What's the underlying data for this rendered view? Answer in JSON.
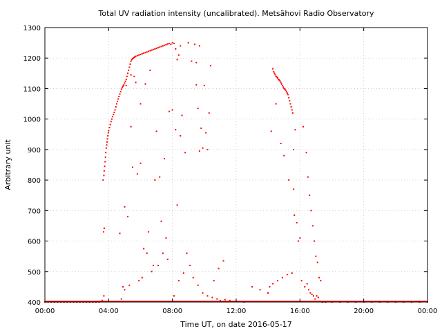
{
  "chart_data": {
    "type": "scatter",
    "title": "Total UV radiation intensity (uncalibrated). Metsähovi Radio Observatory",
    "xlabel": "Time UT, on date 2016-05-17",
    "ylabel": "Arbitrary unit",
    "xlim": [
      0,
      24
    ],
    "ylim": [
      400,
      1300
    ],
    "x_ticks": [
      0,
      4,
      8,
      12,
      16,
      20,
      24
    ],
    "x_tick_labels": [
      "00:00",
      "04:00",
      "08:00",
      "12:00",
      "16:00",
      "20:00",
      "00:00"
    ],
    "y_ticks": [
      400,
      500,
      600,
      700,
      800,
      900,
      1000,
      1100,
      1200,
      1300
    ],
    "y_tick_labels": [
      "400",
      "500",
      "600",
      "700",
      "800",
      "900",
      "1000",
      "1100",
      "1200",
      "1300"
    ],
    "grid": true,
    "marker_color": "#ff0000",
    "series": [
      {
        "x": [
          0.0,
          0.2,
          0.4,
          0.6,
          0.8,
          1.0,
          1.2,
          1.4,
          1.6,
          1.8,
          2.0,
          2.2,
          2.4,
          2.6,
          2.8,
          3.0,
          3.2,
          3.4,
          3.6,
          3.65,
          3.7,
          3.72,
          3.75,
          3.78,
          3.8,
          3.82,
          3.85,
          3.88,
          3.9,
          3.92,
          3.95,
          3.98,
          4.0,
          4.05,
          4.1,
          4.15,
          4.2,
          4.25,
          4.3,
          4.35,
          4.4,
          4.45,
          4.5,
          4.55,
          4.6,
          4.65,
          4.7,
          4.75,
          4.8,
          4.85,
          4.9,
          4.95,
          5.0,
          5.05,
          5.1,
          5.15,
          5.2,
          5.25,
          5.3,
          5.35,
          5.4,
          5.45,
          5.5,
          5.55,
          5.6,
          5.65,
          5.7,
          5.8,
          5.9,
          6.0,
          6.1,
          6.2,
          6.3,
          6.4,
          6.5,
          6.6,
          6.7,
          6.8,
          6.9,
          7.0,
          7.1,
          7.2,
          7.3,
          7.4,
          7.5,
          7.6,
          7.7,
          7.8,
          7.9,
          8.0,
          8.1,
          8.2,
          8.3,
          8.4,
          8.5,
          3.72,
          4.7,
          5.0,
          5.2,
          5.4,
          5.5,
          5.6,
          5.8,
          6.0,
          6.2,
          6.5,
          6.8,
          7.0,
          7.3,
          7.6,
          8.0,
          8.3,
          8.6,
          9.0,
          9.4,
          9.7,
          10.0,
          10.3,
          9.6,
          9.8,
          10.1,
          9.9,
          9.7,
          9.5,
          10.2,
          8.8,
          8.5,
          8.2,
          7.8,
          7.5,
          7.2,
          6.9,
          6.6,
          6.3,
          6.0,
          5.7,
          5.4,
          5.1,
          4.8,
          3.7,
          3.68,
          4.9,
          5.0,
          5.3,
          5.9,
          6.1,
          6.4,
          6.7,
          7.1,
          7.4,
          7.7,
          8.1,
          8.4,
          8.7,
          9.1,
          9.3,
          9.6,
          9.9,
          10.2,
          10.5,
          10.8,
          11.0,
          11.3,
          11.6,
          12.0,
          12.5,
          13.0,
          13.5,
          14.0,
          10.6,
          10.9,
          11.2,
          8.9,
          9.2,
          9.5,
          10.4,
          14.3,
          14.35,
          14.4,
          14.45,
          14.5,
          14.55,
          14.6,
          14.65,
          14.7,
          14.75,
          14.8,
          14.85,
          14.9,
          14.95,
          15.0,
          15.05,
          15.1,
          15.15,
          15.2,
          15.25,
          15.3,
          15.35,
          15.4,
          15.45,
          15.5,
          15.55,
          15.6,
          15.65,
          15.7,
          14.2,
          14.5,
          14.8,
          15.0,
          15.3,
          15.6,
          15.8,
          16.0,
          16.2,
          16.4,
          16.5,
          16.6,
          16.7,
          16.8,
          16.9,
          17.0,
          17.1,
          17.2,
          17.3,
          16.45,
          16.55,
          16.65,
          16.75,
          16.85,
          16.95,
          17.05,
          17.15,
          14.0,
          14.1,
          14.3,
          14.6,
          14.9,
          15.2,
          15.5,
          15.9,
          16.1,
          16.3,
          17.4,
          17.6,
          18.0,
          18.5,
          19.0,
          19.5,
          20.0,
          20.5,
          21.0,
          21.5,
          22.0,
          22.5,
          23.0,
          23.5,
          24.0
        ],
        "y": [
          400,
          400,
          400,
          400,
          400,
          400,
          400,
          400,
          400,
          400,
          400,
          400,
          400,
          400,
          400,
          400,
          400,
          400,
          405,
          800,
          815,
          830,
          845,
          860,
          875,
          890,
          905,
          915,
          925,
          935,
          945,
          955,
          962,
          972,
          982,
          992,
          1000,
          1008,
          1015,
          1022,
          1030,
          1040,
          1050,
          1058,
          1066,
          1074,
          1082,
          1090,
          1098,
          1104,
          1108,
          1112,
          1118,
          1124,
          1130,
          1140,
          1150,
          1160,
          1170,
          1180,
          1190,
          1195,
          1198,
          1200,
          1202,
          1204,
          1206,
          1208,
          1210,
          1212,
          1214,
          1216,
          1218,
          1220,
          1222,
          1224,
          1226,
          1228,
          1230,
          1232,
          1234,
          1236,
          1238,
          1240,
          1242,
          1244,
          1246,
          1248,
          1245,
          1250,
          1248,
          1230,
          1195,
          1210,
          1240,
          642,
          625,
          712,
          680,
          975,
          842,
          1140,
          820,
          855,
          575,
          630,
          520,
          960,
          665,
          610,
          1030,
          718,
          1012,
          1250,
          1245,
          1240,
          1110,
          1020,
          1035,
          970,
          955,
          905,
          895,
          1112,
          900,
          890,
          945,
          965,
          1025,
          870,
          810,
          800,
          1160,
          1115,
          1050,
          1120,
          1145,
          1110,
          410,
          420,
          630,
          450,
          440,
          455,
          470,
          480,
          560,
          500,
          520,
          560,
          540,
          420,
          470,
          495,
          520,
          480,
          455,
          430,
          420,
          415,
          410,
          405,
          408,
          405,
          402,
          400,
          450,
          440,
          430,
          470,
          510,
          535,
          560,
          1190,
          1185,
          1175,
          1165,
          1155,
          1150,
          1145,
          1140,
          1138,
          1135,
          1130,
          1128,
          1125,
          1120,
          1115,
          1110,
          1105,
          1100,
          1098,
          1095,
          1090,
          1085,
          1080,
          1070,
          1060,
          1050,
          1040,
          1030,
          1020,
          900,
          685,
          965,
          960,
          1050,
          920,
          880,
          800,
          770,
          660,
          610,
          975,
          890,
          810,
          750,
          700,
          650,
          600,
          550,
          530,
          480,
          470,
          460,
          440,
          430,
          425,
          420,
          410,
          420,
          415,
          430,
          450,
          460,
          470,
          480,
          490,
          495,
          600,
          470,
          450,
          400,
          400,
          400,
          400,
          400,
          400,
          400,
          400,
          400,
          400,
          400,
          400,
          400,
          400,
          400
        ]
      }
    ]
  }
}
